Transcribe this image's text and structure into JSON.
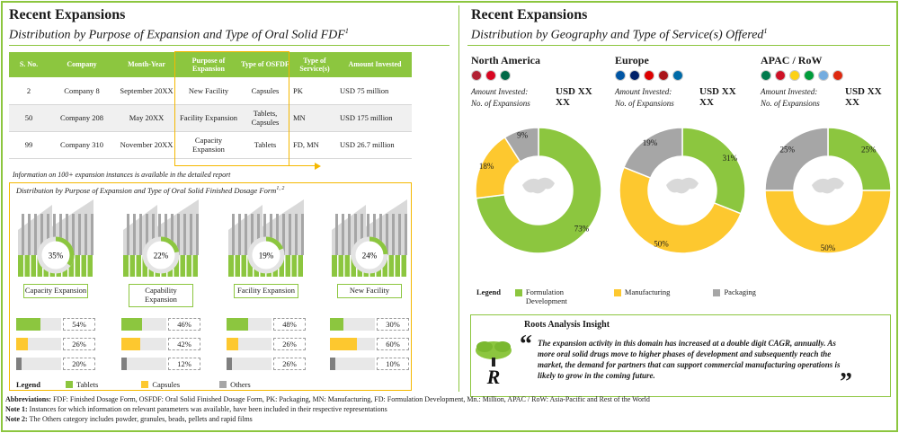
{
  "left": {
    "title": "Recent Expansions",
    "subtitle": "Distribution by Purpose of Expansion and Type of Oral Solid FDF",
    "subtitle_sup": "1",
    "table": {
      "headers": [
        "S. No.",
        "Company",
        "Month-Year",
        "Purpose of Expansion",
        "Type of OSFDF",
        "Type of Service(s)",
        "Amount Invested"
      ],
      "rows": [
        [
          "2",
          "Company 8",
          "September 20XX",
          "New Facility",
          "Capsules",
          "PK",
          "USD 75 million"
        ],
        [
          "50",
          "Company 208",
          "May 20XX",
          "Facility Expansion",
          "Tablets, Capsules",
          "MN",
          "USD 175 million"
        ],
        [
          "99",
          "Company 310",
          "November 20XX",
          "Capacity Expansion",
          "Tablets",
          "FD, MN",
          "USD 26.7 million"
        ]
      ]
    },
    "note": "Information on 100+ expansion instances is available in the detailed report",
    "box_title": "Distribution by Purpose of Expansion and Type of Oral Solid Finished Dosage Form",
    "box_title_sup": "1, 2",
    "categories": [
      {
        "label": "Capacity Expansion",
        "share": "35%",
        "share_value": 35,
        "tablets": "54%",
        "tablets_value": 54,
        "capsules": "26%",
        "capsules_value": 26,
        "others": "20%",
        "others_value": 20
      },
      {
        "label": "Capability Expansion",
        "share": "22%",
        "share_value": 22,
        "tablets": "46%",
        "tablets_value": 46,
        "capsules": "42%",
        "capsules_value": 42,
        "others": "12%",
        "others_value": 12
      },
      {
        "label": "Facility Expansion",
        "share": "19%",
        "share_value": 19,
        "tablets": "48%",
        "tablets_value": 48,
        "capsules": "26%",
        "capsules_value": 26,
        "others": "26%",
        "others_value": 26
      },
      {
        "label": "New Facility",
        "share": "24%",
        "share_value": 24,
        "tablets": "30%",
        "tablets_value": 30,
        "capsules": "60%",
        "capsules_value": 60,
        "others": "10%",
        "others_value": 10
      }
    ],
    "legend": {
      "title": "Legend",
      "tablets": "Tablets",
      "capsules": "Capsules",
      "others": "Others"
    }
  },
  "right": {
    "title": "Recent Expansions",
    "subtitle": "Distribution by Geography and Type of Service(s) Offered",
    "subtitle_sup": "1",
    "amount_label": "Amount Invested:",
    "count_label": "No. of Expansions",
    "amount_value": "USD XX",
    "count_value": "XX",
    "regions": [
      {
        "name": "North America",
        "flags": [
          "#b22234",
          "#d80621",
          "#006847"
        ],
        "slices": [
          {
            "name": "Formulation Development",
            "value": 73,
            "label": "73%"
          },
          {
            "name": "Manufacturing",
            "value": 18,
            "label": "18%"
          },
          {
            "name": "Packaging",
            "value": 9,
            "label": "9%"
          }
        ]
      },
      {
        "name": "Europe",
        "flags": [
          "#0055a4",
          "#012169",
          "#dd0000",
          "#aa151b",
          "#006aa7"
        ],
        "slices": [
          {
            "name": "Formulation Development",
            "value": 31,
            "label": "31%"
          },
          {
            "name": "Manufacturing",
            "value": 50,
            "label": "50%"
          },
          {
            "name": "Packaging",
            "value": 19,
            "label": "19%"
          }
        ]
      },
      {
        "name": "APAC / RoW",
        "flags": [
          "#007a4d",
          "#ce1126",
          "#fcd116",
          "#009c3b",
          "#74acdf",
          "#de2910"
        ],
        "slices": [
          {
            "name": "Formulation Development",
            "value": 25,
            "label": "25%"
          },
          {
            "name": "Manufacturing",
            "value": 50,
            "label": "50%"
          },
          {
            "name": "Packaging",
            "value": 25,
            "label": "25%"
          }
        ]
      }
    ],
    "legend": {
      "title": "Legend",
      "fd": "Formulation Development",
      "mn": "Manufacturing",
      "pk": "Packaging"
    },
    "insight_title": "Roots Analysis Insight",
    "insight_text": "The expansion activity in this domain has increased at a double digit CAGR, annually. As more oral solid drugs move to higher phases of development and subsequently reach the market, the demand for partners that can support commercial manufacturing operations is likely to grow in the coming future.",
    "logo_letter": "R"
  },
  "footer": {
    "abbr_label": "Abbreviations:",
    "abbr_text": "FDF: Finished Dosage Form, OSFDF: Oral Solid Finished Dosage Form, PK: Packaging, MN: Manufacturing, FD: Formulation Development, Mn.: Million, APAC / RoW: Asia-Pacific and Rest of the World",
    "note1_label": "Note 1:",
    "note1_text": "Instances for which information on relevant parameters was available, have been included in their respective representations",
    "note2_label": "Note 2:",
    "note2_text": "The Others category includes powder, granules, beads, pellets and rapid films"
  },
  "colors": {
    "green": "#8cc63f",
    "yellow": "#fdc82f",
    "gray": "#a6a6a6",
    "building": "#a6a6a6"
  }
}
